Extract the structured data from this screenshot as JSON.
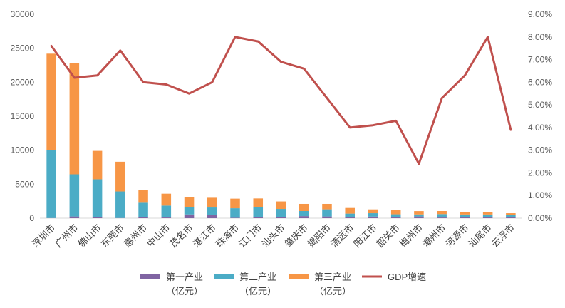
{
  "chart_data": {
    "type": "bar",
    "stacked": true,
    "title": "",
    "xlabel": "",
    "ylabel": "",
    "categories": [
      "深圳市",
      "广州市",
      "佛山市",
      "东莞市",
      "惠州市",
      "中山市",
      "茂名市",
      "湛江市",
      "珠海市",
      "江门市",
      "汕头市",
      "肇庆市",
      "揭阳市",
      "清远市",
      "阳江市",
      "韶关市",
      "梅州市",
      "潮州市",
      "河源市",
      "汕尾市",
      "云浮市"
    ],
    "series": [
      {
        "name": "第一产业（亿元）",
        "color": "#8064A2",
        "axis": "left",
        "values": [
          25,
          250,
          120,
          30,
          170,
          100,
          550,
          470,
          60,
          190,
          110,
          300,
          250,
          170,
          230,
          170,
          250,
          100,
          140,
          140,
          130
        ]
      },
      {
        "name": "第二产业（亿元）",
        "color": "#4BACC6",
        "axis": "left",
        "values": [
          10000,
          6200,
          5600,
          3900,
          2100,
          1750,
          1100,
          1100,
          1400,
          1450,
          1250,
          750,
          1050,
          500,
          500,
          400,
          300,
          500,
          400,
          400,
          300
        ]
      },
      {
        "name": "第三产业（亿元）",
        "color": "#F79646",
        "axis": "left",
        "values": [
          14175,
          16400,
          4180,
          4370,
          1830,
          1750,
          1450,
          1430,
          1410,
          1260,
          1100,
          1050,
          800,
          830,
          560,
          680,
          490,
          450,
          400,
          320,
          300
        ]
      },
      {
        "name": "GDP增速",
        "color": "#C0504D",
        "type": "line",
        "axis": "right",
        "values": [
          7.6,
          6.2,
          6.3,
          7.4,
          6.0,
          5.9,
          5.5,
          6.0,
          8.0,
          7.8,
          6.9,
          6.6,
          5.3,
          4.0,
          4.1,
          4.3,
          2.4,
          5.3,
          6.3,
          8.0,
          3.9
        ]
      }
    ],
    "ylim": [
      0,
      30000
    ],
    "yticks": [
      "0",
      "5000",
      "10000",
      "15000",
      "20000",
      "25000",
      "30000"
    ],
    "y2lim": [
      0,
      9
    ],
    "y2ticks": [
      "0.00%",
      "1.00%",
      "2.00%",
      "3.00%",
      "4.00%",
      "5.00%",
      "6.00%",
      "7.00%",
      "8.00%",
      "9.00%"
    ],
    "grid": false,
    "legend": {
      "position": "bottom",
      "items": [
        {
          "lines": [
            "第一产业",
            "（亿元）"
          ],
          "color": "#8064A2",
          "marker": "rect"
        },
        {
          "lines": [
            "第二产业",
            "（亿元）"
          ],
          "color": "#4BACC6",
          "marker": "rect"
        },
        {
          "lines": [
            "第三产业",
            "（亿元）"
          ],
          "color": "#F79646",
          "marker": "rect"
        },
        {
          "lines": [
            "GDP增速"
          ],
          "color": "#C0504D",
          "marker": "line"
        }
      ]
    }
  }
}
